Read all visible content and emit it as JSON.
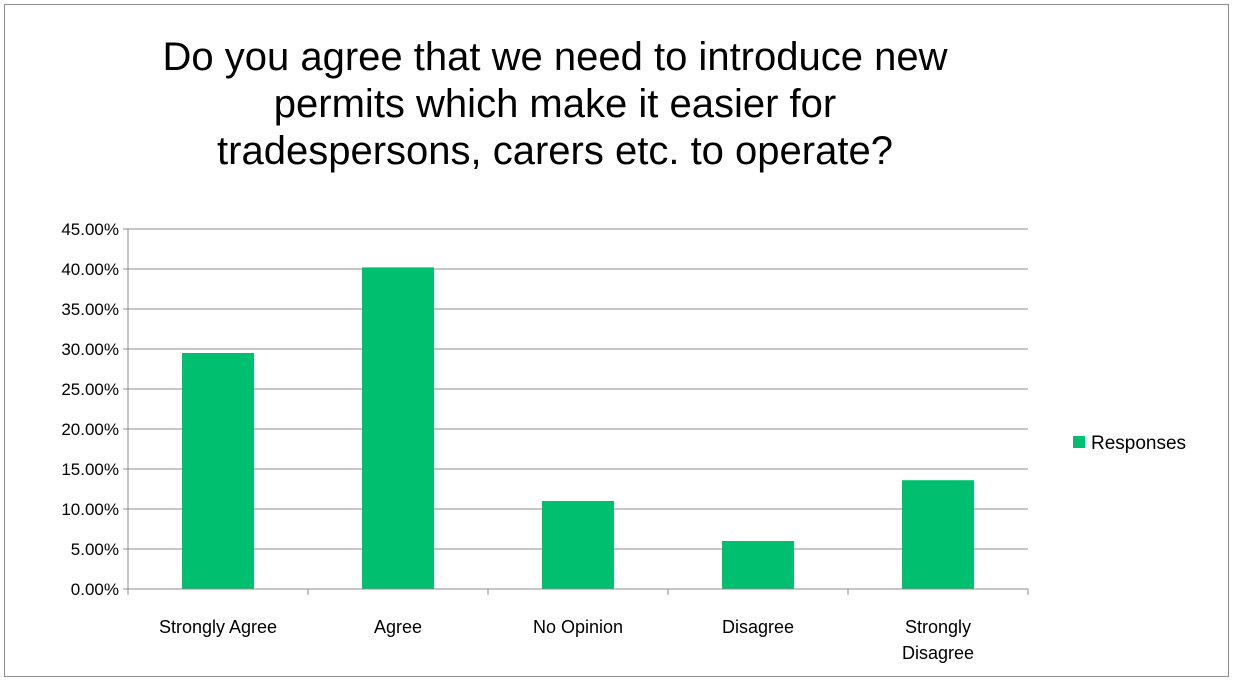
{
  "chart_data": {
    "type": "bar",
    "title": "Do you agree that we need to introduce new permits which make it easier for tradespersons, carers etc. to operate?",
    "title_lines": [
      "Do you agree that we need to introduce new",
      "permits which make it easier for",
      "tradespersons, carers etc. to operate?"
    ],
    "categories": [
      "Strongly Agree",
      "Agree",
      "No Opinion",
      "Disagree",
      "Strongly Disagree"
    ],
    "category_lines": [
      [
        "Strongly Agree"
      ],
      [
        "Agree"
      ],
      [
        "No Opinion"
      ],
      [
        "Disagree"
      ],
      [
        "Strongly",
        "Disagree"
      ]
    ],
    "series": [
      {
        "name": "Responses",
        "values": [
          29.5,
          40.2,
          11.0,
          6.0,
          13.6
        ],
        "color": "#00bf6f"
      }
    ],
    "ylim": [
      0,
      45
    ],
    "yticks": [
      "0.00%",
      "5.00%",
      "10.00%",
      "15.00%",
      "20.00%",
      "25.00%",
      "30.00%",
      "35.00%",
      "40.00%",
      "45.00%"
    ],
    "ytick_values": [
      0,
      5,
      10,
      15,
      20,
      25,
      30,
      35,
      40,
      45
    ],
    "grid": true,
    "legend_position": "right",
    "xlabel": "",
    "ylabel": ""
  }
}
